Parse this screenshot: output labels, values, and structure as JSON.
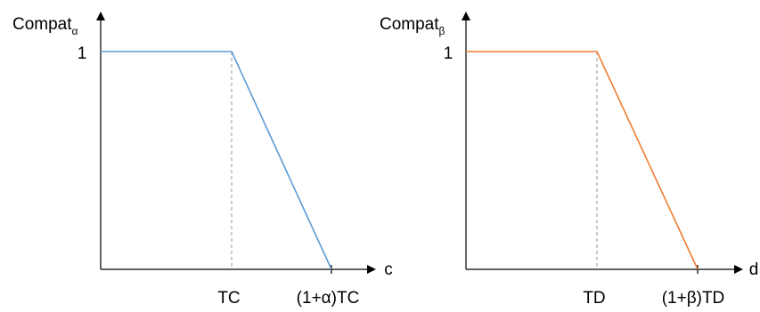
{
  "chart_data": [
    {
      "type": "line",
      "ylabel": "Compat",
      "ylabel_sub": "α",
      "xlabel": "c",
      "y_tick": "1",
      "x_ticks": [
        "TC",
        "(1+α)TC"
      ],
      "series": [
        {
          "color": "#5b9bd5",
          "points": [
            {
              "x": 0,
              "y": 1
            },
            {
              "x": "TC",
              "y": 1
            },
            {
              "x": "(1+α)TC",
              "y": 0
            }
          ]
        }
      ]
    },
    {
      "type": "line",
      "ylabel": "Compat",
      "ylabel_sub": "β",
      "xlabel": "d",
      "y_tick": "1",
      "x_ticks": [
        "TD",
        "(1+β)TD"
      ],
      "series": [
        {
          "color": "#ed7d31",
          "points": [
            {
              "x": 0,
              "y": 1
            },
            {
              "x": "TD",
              "y": 1
            },
            {
              "x": "(1+β)TD",
              "y": 0
            }
          ]
        }
      ]
    }
  ]
}
